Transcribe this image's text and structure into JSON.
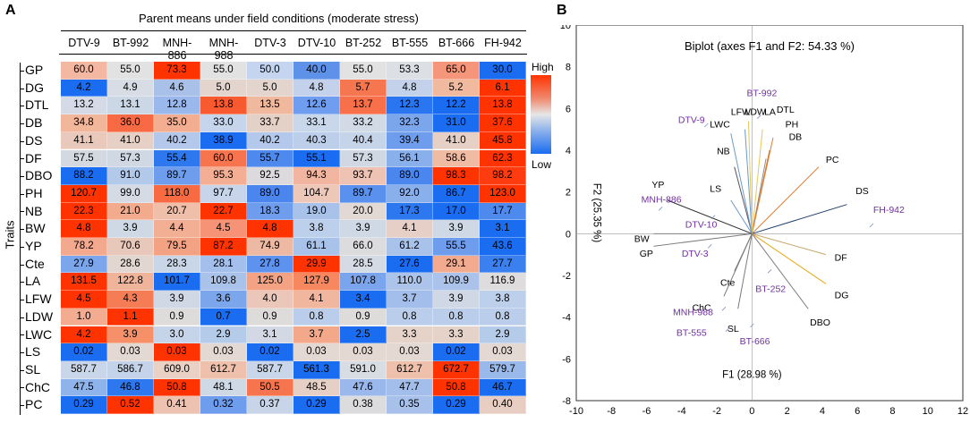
{
  "panel_a": {
    "letter": "A",
    "subtitle": "Parent means under field conditions (moderate stress)",
    "y_axis_label": "Traits",
    "legend": {
      "high": "High",
      "low": "Low"
    },
    "columns": [
      "DTV-9",
      "BT-992",
      "MNH-886",
      "MNH-988",
      "DTV-3",
      "DTV-10",
      "BT-252",
      "BT-555",
      "BT-666",
      "FH-942"
    ],
    "rows": [
      {
        "trait": "GP",
        "values": [
          "60.0",
          "55.0",
          "73.3",
          "55.0",
          "50.0",
          "40.0",
          "55.0",
          "53.3",
          "65.0",
          "30.0"
        ],
        "colors": [
          "#f4b7a2",
          "#e2e2e2",
          "#ff3300",
          "#e2e2e2",
          "#c5d5ef",
          "#5d92e8",
          "#e2e2e2",
          "#dcdfe4",
          "#f5967a",
          "#1a6cf0"
        ]
      },
      {
        "trait": "DG",
        "values": [
          "4.2",
          "4.9",
          "4.6",
          "5.0",
          "5.0",
          "4.8",
          "5.7",
          "4.8",
          "5.2",
          "6.1"
        ],
        "colors": [
          "#1a6cf0",
          "#d8dde5",
          "#a9c0e8",
          "#e3d4cd",
          "#e3d4cd",
          "#c3d2ea",
          "#f5764f",
          "#c3d2ea",
          "#f1ba9f",
          "#ff3300"
        ]
      },
      {
        "trait": "DTL",
        "values": [
          "13.2",
          "13.1",
          "12.8",
          "13.8",
          "13.5",
          "12.6",
          "13.7",
          "12.3",
          "12.2",
          "13.8"
        ],
        "colors": [
          "#d4dbe6",
          "#ccd7e6",
          "#9ab8eb",
          "#f85a30",
          "#f0b89d",
          "#6f9df0",
          "#f7704a",
          "#2a75f0",
          "#1a6cf0",
          "#ff3300"
        ]
      },
      {
        "trait": "DB",
        "values": [
          "34.8",
          "36.0",
          "35.0",
          "33.0",
          "33.7",
          "33.1",
          "33.2",
          "32.3",
          "31.0",
          "37.6"
        ],
        "colors": [
          "#f2b69b",
          "#f76a43",
          "#f3ae92",
          "#c6d5ec",
          "#e3d0c6",
          "#c9d7ea",
          "#d2dae6",
          "#7ca6ec",
          "#1a6cf0",
          "#ff3300"
        ]
      },
      {
        "trait": "DS",
        "values": [
          "41.1",
          "41.0",
          "40.2",
          "38.9",
          "40.2",
          "40.3",
          "40.4",
          "39.4",
          "41.0",
          "45.8"
        ],
        "colors": [
          "#e8c9bc",
          "#e6cfc5",
          "#b3c8ea",
          "#1a6cf0",
          "#b3c8ea",
          "#bcceea",
          "#c6d4e9",
          "#6f9ded",
          "#e6cfc5",
          "#ff3300"
        ]
      },
      {
        "trait": "DF",
        "values": [
          "57.5",
          "57.3",
          "55.4",
          "60.0",
          "55.7",
          "55.1",
          "57.3",
          "56.1",
          "58.6",
          "62.3"
        ],
        "colors": [
          "#d4d9e1",
          "#d0d8e3",
          "#2d78ef",
          "#f6754e",
          "#4e89ee",
          "#1a6cf0",
          "#d0d8e3",
          "#8ab0ec",
          "#f0bba3",
          "#ff3300"
        ]
      },
      {
        "trait": "DBO",
        "values": [
          "88.2",
          "91.0",
          "89.7",
          "95.3",
          "92.5",
          "94.3",
          "93.7",
          "89.0",
          "98.3",
          "98.2"
        ],
        "colors": [
          "#1a6cf0",
          "#b3c9ea",
          "#6f9ded",
          "#f3ae93",
          "#dcdadc",
          "#f2b6a0",
          "#eec3b3",
          "#4b86ee",
          "#ff3300",
          "#ff3b10"
        ]
      },
      {
        "trait": "PH",
        "values": [
          "120.7",
          "99.0",
          "118.0",
          "97.7",
          "89.0",
          "104.7",
          "89.7",
          "92.0",
          "86.7",
          "123.0"
        ],
        "colors": [
          "#ff3300",
          "#d4dbe5",
          "#f86a41",
          "#c7d4ea",
          "#4b86ee",
          "#edc8b8",
          "#5a90ee",
          "#8ab0ec",
          "#1a6cf0",
          "#ff3300"
        ]
      },
      {
        "trait": "NB",
        "values": [
          "22.3",
          "21.0",
          "20.7",
          "22.7",
          "18.3",
          "19.0",
          "20.0",
          "17.3",
          "17.0",
          "17.7"
        ],
        "colors": [
          "#ff3300",
          "#f3ab8e",
          "#efbfa9",
          "#ff3300",
          "#6f9ded",
          "#a9c2ea",
          "#e2d9d5",
          "#2d78ef",
          "#1a6cf0",
          "#4e89ee"
        ]
      },
      {
        "trait": "BW",
        "values": [
          "4.8",
          "3.9",
          "4.4",
          "4.5",
          "4.8",
          "3.8",
          "3.9",
          "4.1",
          "3.9",
          "3.1"
        ],
        "colors": [
          "#ff3300",
          "#cfd8e5",
          "#f2af93",
          "#f69376",
          "#ff3300",
          "#bccfeb",
          "#cfd8e5",
          "#e6cfc6",
          "#cfd8e5",
          "#1a6cf0"
        ]
      },
      {
        "trait": "YP",
        "values": [
          "78.2",
          "70.6",
          "79.5",
          "87.2",
          "74.9",
          "61.1",
          "66.0",
          "61.2",
          "55.5",
          "43.6"
        ],
        "colors": [
          "#f3a98d",
          "#e8c8ba",
          "#f3a283",
          "#ff3300",
          "#eeb9a2",
          "#a9c2ea",
          "#dcdcde",
          "#a9c2ea",
          "#6f9ded",
          "#1a6cf0"
        ]
      },
      {
        "trait": "Cte",
        "values": [
          "27.9",
          "28.6",
          "28.3",
          "28.1",
          "27.8",
          "29.9",
          "28.5",
          "27.6",
          "29.1",
          "27.7"
        ],
        "colors": [
          "#7ca6ec",
          "#e2d6d0",
          "#c9d6e8",
          "#a4bfeb",
          "#5d92ee",
          "#ff3300",
          "#d5dbe4",
          "#1a6cf0",
          "#f3ab8f",
          "#3b80ef"
        ]
      },
      {
        "trait": "LA",
        "values": [
          "131.5",
          "122.8",
          "101.7",
          "109.8",
          "125.0",
          "127.9",
          "107.8",
          "110.0",
          "109.9",
          "116.9"
        ],
        "colors": [
          "#ff3300",
          "#f0b49a",
          "#1a6cf0",
          "#a9c2ea",
          "#f3a283",
          "#f6875f",
          "#7aa4ec",
          "#acc4ea",
          "#abc3ea",
          "#dedcdd"
        ]
      },
      {
        "trait": "LFW",
        "values": [
          "4.5",
          "4.3",
          "3.9",
          "3.6",
          "4.0",
          "4.1",
          "3.4",
          "3.7",
          "3.9",
          "3.8"
        ],
        "colors": [
          "#ff3300",
          "#f57d56",
          "#d0d8e5",
          "#7ca6ec",
          "#eac7b9",
          "#f0b69e",
          "#1a6cf0",
          "#a3beea",
          "#d0d8e5",
          "#bccfeb"
        ]
      },
      {
        "trait": "LDW",
        "values": [
          "1.0",
          "1.1",
          "0.9",
          "0.7",
          "0.9",
          "0.8",
          "0.9",
          "0.8",
          "0.8",
          "0.8"
        ],
        "colors": [
          "#f3ac90",
          "#ff3300",
          "#dedbdb",
          "#1a6cf0",
          "#dedbdb",
          "#bacdea",
          "#dedbdb",
          "#bacdea",
          "#bacdea",
          "#bacdea"
        ]
      },
      {
        "trait": "LWC",
        "values": [
          "4.2",
          "3.9",
          "3.0",
          "2.9",
          "3.1",
          "3.7",
          "2.5",
          "3.3",
          "3.3",
          "2.9"
        ],
        "colors": [
          "#ff3300",
          "#f59068",
          "#c6d4ea",
          "#b5cbea",
          "#d2d9e4",
          "#f4a88a",
          "#1a6cf0",
          "#e5d2c9",
          "#e5d2c9",
          "#b5cbea"
        ]
      },
      {
        "trait": "LS",
        "values": [
          "0.02",
          "0.03",
          "0.03",
          "0.03",
          "0.02",
          "0.03",
          "0.03",
          "0.03",
          "0.02",
          "0.03"
        ],
        "colors": [
          "#1a6cf0",
          "#e4d8d2",
          "#ff3300",
          "#e4d8d2",
          "#1a6cf0",
          "#e4d8d2",
          "#e4d8d2",
          "#e4d8d2",
          "#1a6cf0",
          "#e4d8d2"
        ]
      },
      {
        "trait": "SL",
        "values": [
          "587.7",
          "586.7",
          "609.0",
          "612.7",
          "587.7",
          "561.3",
          "591.0",
          "612.7",
          "672.7",
          "579.7"
        ],
        "colors": [
          "#c9d6e9",
          "#c4d3e9",
          "#ead1c5",
          "#efc0ab",
          "#c9d6e9",
          "#1a6cf0",
          "#d8dce3",
          "#efc0ab",
          "#ff3300",
          "#9ab9eb"
        ]
      },
      {
        "trait": "ChC",
        "values": [
          "47.5",
          "46.8",
          "50.8",
          "48.1",
          "50.5",
          "48.5",
          "47.6",
          "47.7",
          "50.8",
          "46.7"
        ],
        "colors": [
          "#8fb3eb",
          "#2d78ef",
          "#ff3300",
          "#cfd8e5",
          "#f6754e",
          "#e6cfc5",
          "#9ab8eb",
          "#a3beea",
          "#ff3300",
          "#1a6cf0"
        ]
      },
      {
        "trait": "PC",
        "values": [
          "0.29",
          "0.52",
          "0.41",
          "0.32",
          "0.37",
          "0.29",
          "0.38",
          "0.35",
          "0.29",
          "0.40"
        ],
        "colors": [
          "#1a6cf0",
          "#ff3300",
          "#edc2b0",
          "#6f9ded",
          "#c8d5e9",
          "#1a6cf0",
          "#dcdcde",
          "#a7c1ea",
          "#1a6cf0",
          "#e8cdc2"
        ]
      }
    ]
  },
  "panel_b": {
    "letter": "B",
    "chart_data": {
      "type": "scatter",
      "title": "Biplot (axes F1 and F2: 54.33 %)",
      "xlabel": "F1 (28.98 %)",
      "ylabel": "F2 (25.35 %)",
      "xlim": [
        -10,
        12
      ],
      "ylim": [
        -8,
        10
      ],
      "xticks": [
        -10,
        -8,
        -6,
        -4,
        -2,
        0,
        2,
        4,
        6,
        8,
        10,
        12
      ],
      "yticks": [
        -8,
        -6,
        -4,
        -2,
        0,
        2,
        4,
        6,
        8,
        10
      ],
      "vectors": [
        {
          "label": "GP",
          "x": -5.6,
          "y": -0.6,
          "color": "#808080",
          "lx": -6.4,
          "ly": -1.1
        },
        {
          "label": "DG",
          "x": 4.2,
          "y": -2.4,
          "color": "#e6a817",
          "lx": 4.7,
          "ly": -3.1
        },
        {
          "label": "DTL",
          "x": 0.8,
          "y": 3.6,
          "color": "#8c8c8c",
          "lx": 1.4,
          "ly": 5.8
        },
        {
          "label": "DB",
          "x": 1.0,
          "y": 4.0,
          "color": "#e07a2e",
          "lx": 2.1,
          "ly": 4.5
        },
        {
          "label": "DS",
          "x": 5.4,
          "y": 1.4,
          "color": "#1f3f6e",
          "lx": 5.9,
          "ly": 1.9
        },
        {
          "label": "DF",
          "x": 4.2,
          "y": -1.0,
          "color": "#c9a66b",
          "lx": 4.7,
          "ly": -1.3
        },
        {
          "label": "DBO",
          "x": 3.2,
          "y": -3.6,
          "color": "#7d7d7d",
          "lx": 3.3,
          "ly": -4.4
        },
        {
          "label": "PH",
          "x": 1.2,
          "y": 4.6,
          "color": "#e07a2e",
          "lx": 1.9,
          "ly": 5.1
        },
        {
          "label": "NB",
          "x": -1.0,
          "y": 3.2,
          "color": "#555555",
          "lx": -2.0,
          "ly": 3.8
        },
        {
          "label": "BW",
          "x": -5.6,
          "y": 0.0,
          "color": "#808080",
          "lx": -6.7,
          "ly": -0.4
        },
        {
          "label": "YP",
          "x": -4.8,
          "y": 1.6,
          "color": "#2f2f2f",
          "lx": -5.7,
          "ly": 2.2
        },
        {
          "label": "Cte",
          "x": -1.0,
          "y": -1.8,
          "color": "#7a7a7a",
          "lx": -1.8,
          "ly": -2.5
        },
        {
          "label": "LA",
          "x": 0.6,
          "y": 5.0,
          "color": "#e6c75a",
          "lx": 0.7,
          "ly": 5.7
        },
        {
          "label": "LFW",
          "x": -0.4,
          "y": 5.0,
          "color": "#6a99c9",
          "lx": -1.2,
          "ly": 5.7
        },
        {
          "label": "LDW",
          "x": -0.2,
          "y": 5.4,
          "color": "#e6c75a",
          "lx": -0.4,
          "ly": 5.7
        },
        {
          "label": "LWC",
          "x": -1.2,
          "y": 4.8,
          "color": "#6a99c9",
          "lx": -2.4,
          "ly": 5.1
        },
        {
          "label": "LS",
          "x": -1.2,
          "y": 1.6,
          "color": "#6a99c9",
          "lx": -2.4,
          "ly": 2.0
        },
        {
          "label": "SL",
          "x": -0.8,
          "y": -3.6,
          "color": "#7a7a7a",
          "lx": -1.4,
          "ly": -4.7
        },
        {
          "label": "ChC",
          "x": -1.6,
          "y": -3.0,
          "color": "#7a7a7a",
          "lx": -3.4,
          "ly": -3.7
        },
        {
          "label": "PC",
          "x": 3.8,
          "y": 3.2,
          "color": "#e07a2e",
          "lx": 4.2,
          "ly": 3.4
        }
      ],
      "genotypes": [
        {
          "label": "BT-992",
          "x": 0.4,
          "y": 5.6,
          "lx": -0.3,
          "ly": 6.6
        },
        {
          "label": "DTV-9",
          "x": -2.6,
          "y": 5.2,
          "lx": -4.2,
          "ly": 5.3
        },
        {
          "label": "MNH-886",
          "x": -5.2,
          "y": 1.2,
          "lx": -6.3,
          "ly": 1.5
        },
        {
          "label": "DTV-10",
          "x": -2.2,
          "y": 0.8,
          "lx": -3.8,
          "ly": 0.3
        },
        {
          "label": "DTV-3",
          "x": -2.4,
          "y": -0.6,
          "lx": -4.0,
          "ly": -1.1
        },
        {
          "label": "FH-942",
          "x": 6.8,
          "y": 0.4,
          "lx": 6.9,
          "ly": 1.0
        },
        {
          "label": "BT-252",
          "x": 1.0,
          "y": -1.8,
          "lx": 0.2,
          "ly": -2.8
        },
        {
          "label": "MNH-988",
          "x": -1.6,
          "y": -3.6,
          "lx": -4.5,
          "ly": -3.9
        },
        {
          "label": "BT-555",
          "x": -1.4,
          "y": -4.6,
          "lx": -4.3,
          "ly": -4.9
        },
        {
          "label": "BT-666",
          "x": 0.0,
          "y": -4.4,
          "lx": -0.7,
          "ly": -5.3
        }
      ]
    }
  },
  "colors": {
    "high": "#ff3300",
    "low": "#1a6cf0",
    "mid": "#e6e6e6",
    "genotype": "#7030a0"
  }
}
